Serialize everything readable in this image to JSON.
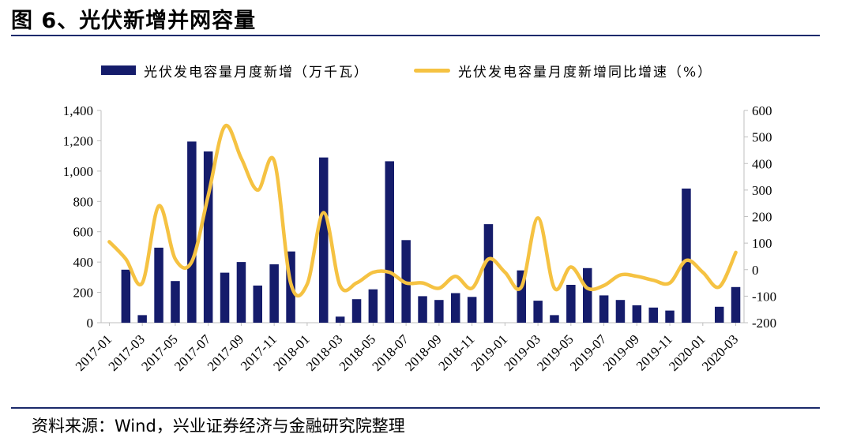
{
  "header": {
    "title": "图 6、光伏新增并网容量"
  },
  "footer": {
    "source": "资料来源：Wind，兴业证券经济与金融研究院整理"
  },
  "colors": {
    "bar": "#151c6b",
    "line": "#f5c242",
    "rule": "#1b2a6b"
  },
  "chart_data": {
    "type": "bar",
    "categories": [
      "2017-01",
      "2017-02",
      "2017-03",
      "2017-04",
      "2017-05",
      "2017-06",
      "2017-07",
      "2017-08",
      "2017-09",
      "2017-10",
      "2017-11",
      "2017-12",
      "2018-01",
      "2018-02",
      "2018-03",
      "2018-04",
      "2018-05",
      "2018-06",
      "2018-07",
      "2018-08",
      "2018-09",
      "2018-10",
      "2018-11",
      "2018-12",
      "2019-01",
      "2019-02",
      "2019-03",
      "2019-04",
      "2019-05",
      "2019-06",
      "2019-07",
      "2019-08",
      "2019-09",
      "2019-10",
      "2019-11",
      "2019-12",
      "2020-01",
      "2020-02",
      "2020-03"
    ],
    "x_tick_labels": [
      "2017-01",
      "2017-03",
      "2017-05",
      "2017-07",
      "2017-09",
      "2017-11",
      "2018-01",
      "2018-03",
      "2018-05",
      "2018-07",
      "2018-09",
      "2018-11",
      "2019-01",
      "2019-03",
      "2019-05",
      "2019-07",
      "2019-09",
      "2019-11",
      "2020-01",
      "2020-03"
    ],
    "series": [
      {
        "name": "光伏发电容量月度新增（万千瓦）",
        "type": "bar",
        "axis": "left",
        "values": [
          null,
          350,
          50,
          495,
          275,
          1195,
          1130,
          330,
          400,
          245,
          385,
          470,
          null,
          1090,
          40,
          155,
          220,
          1065,
          545,
          175,
          150,
          195,
          170,
          650,
          null,
          345,
          145,
          50,
          250,
          360,
          180,
          150,
          115,
          100,
          80,
          885,
          null,
          105,
          235
        ]
      },
      {
        "name": "光伏发电容量月度新增同比增速（%）",
        "type": "line",
        "axis": "right",
        "values": [
          105,
          40,
          -50,
          240,
          40,
          30,
          280,
          540,
          420,
          300,
          410,
          -50,
          -55,
          215,
          -60,
          -50,
          -10,
          -10,
          -50,
          -50,
          -70,
          -25,
          -70,
          40,
          -10,
          -65,
          195,
          -70,
          10,
          -70,
          -60,
          -20,
          -25,
          -40,
          -50,
          35,
          -10,
          -65,
          65
        ]
      }
    ],
    "y_left": {
      "ylim": [
        0,
        1400
      ],
      "ticks": [
        "0",
        "200",
        "400",
        "600",
        "800",
        "1,000",
        "1,200",
        "1,400"
      ]
    },
    "y_right": {
      "ylim": [
        -200,
        600
      ],
      "ticks": [
        "-200",
        "-100",
        "0",
        "100",
        "200",
        "300",
        "400",
        "500",
        "600"
      ]
    },
    "legend_position": "top",
    "grid": false
  }
}
